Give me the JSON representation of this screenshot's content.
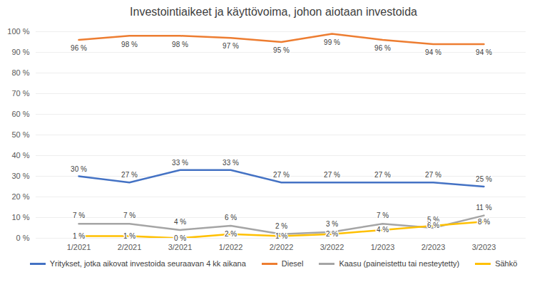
{
  "chart_data": {
    "type": "line",
    "title": "Investointiaikeet ja käyttövoima, johon aiotaan investoida",
    "categories": [
      "1/2021",
      "2/2021",
      "3/2021",
      "1/2022",
      "2/2022",
      "3/2022",
      "1/2023",
      "2/2023",
      "3/2023"
    ],
    "series": [
      {
        "name": "Yritykset, jotka aikovat investoida seuraavan 4 kk aikana",
        "color": "#4472c4",
        "values": [
          30,
          27,
          33,
          33,
          27,
          27,
          27,
          27,
          25
        ],
        "value_labels": [
          "30 %",
          "27 %",
          "33 %",
          "33 %",
          "27 %",
          "27 %",
          "27 %",
          "27 %",
          "25 %"
        ]
      },
      {
        "name": "Diesel",
        "color": "#ed7d31",
        "values": [
          96,
          98,
          98,
          97,
          95,
          99,
          96,
          94,
          94
        ],
        "value_labels": [
          "96 %",
          "98 %",
          "98 %",
          "97 %",
          "95 %",
          "99 %",
          "96 %",
          "94 %",
          "94 %"
        ]
      },
      {
        "name": "Kaasu (paineistettu tai nesteytetty)",
        "color": "#a5a5a5",
        "values": [
          7,
          7,
          4,
          6,
          2,
          3,
          7,
          5,
          11
        ],
        "value_labels": [
          "7 %",
          "7 %",
          "4 %",
          "6 %",
          "2 %",
          "3 %",
          "7 %",
          "5 %",
          "11 %"
        ]
      },
      {
        "name": "Sähkö",
        "color": "#ffc000",
        "values": [
          1,
          1,
          0,
          2,
          1,
          2,
          4,
          6,
          8
        ],
        "value_labels": [
          "1 %",
          "1 %",
          "0 %",
          "2 %",
          "1 %",
          "2 %",
          "4 %",
          "6 %",
          "8 %"
        ]
      }
    ],
    "ylim": [
      0,
      100
    ],
    "yticks": [
      {
        "value": 0,
        "label": "0 %"
      },
      {
        "value": 10,
        "label": "10 %"
      },
      {
        "value": 20,
        "label": "20 %"
      },
      {
        "value": 30,
        "label": "30 %"
      },
      {
        "value": 40,
        "label": "40 %"
      },
      {
        "value": 50,
        "label": "50 %"
      },
      {
        "value": 60,
        "label": "60 %"
      },
      {
        "value": 70,
        "label": "70 %"
      },
      {
        "value": 80,
        "label": "80 %"
      },
      {
        "value": 90,
        "label": "90 %"
      },
      {
        "value": 100,
        "label": "100 %"
      }
    ],
    "grid": true,
    "legend": "bottom",
    "data_labels": true
  }
}
